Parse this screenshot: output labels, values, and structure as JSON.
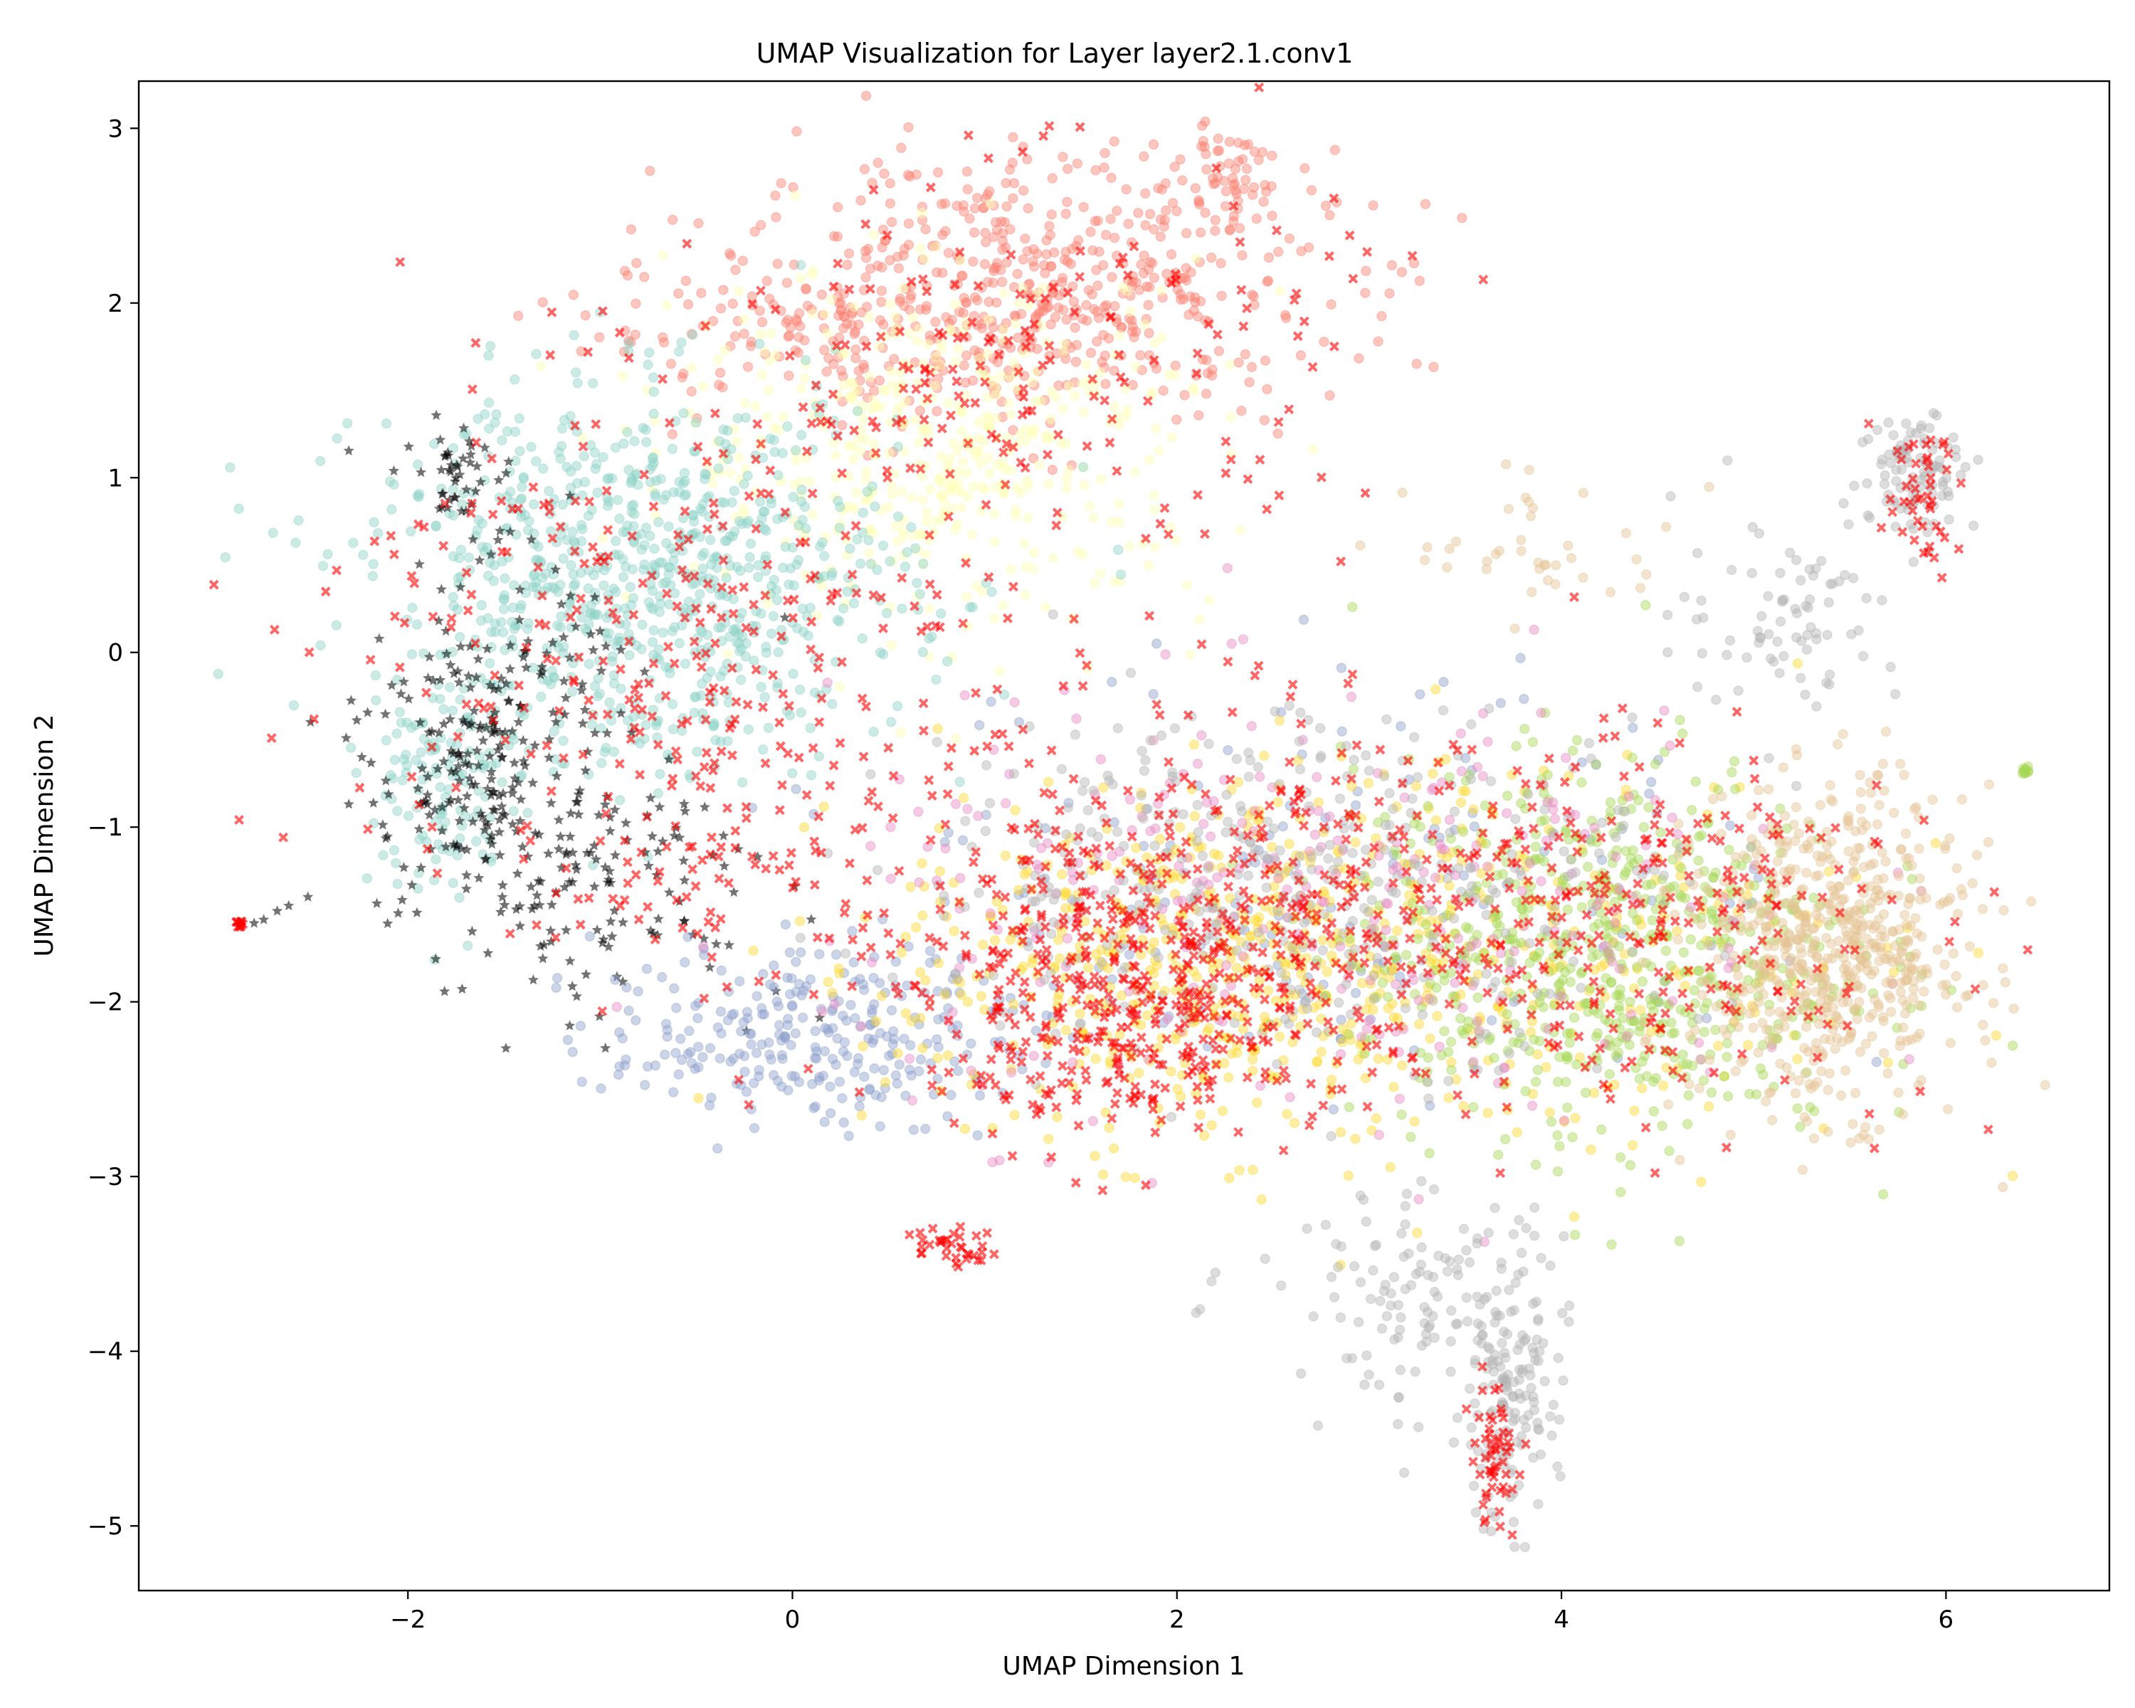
{
  "chart_data": {
    "type": "scatter",
    "title": "UMAP Visualization for Layer layer2.1.conv1",
    "xlabel": "UMAP Dimension 1",
    "ylabel": "UMAP Dimension 2",
    "xlim": [
      -3.4,
      6.85
    ],
    "ylim": [
      -5.37,
      3.27
    ],
    "x_ticks": [
      -2,
      0,
      2,
      4,
      6
    ],
    "x_tick_labels": [
      "−2",
      "0",
      "2",
      "4",
      "6"
    ],
    "y_ticks": [
      -5,
      -4,
      -3,
      -2,
      -1,
      0,
      1,
      2,
      3
    ],
    "y_tick_labels": [
      "−5",
      "−4",
      "−3",
      "−2",
      "−1",
      "0",
      "1",
      "2",
      "3"
    ],
    "grid": false,
    "legend": "none",
    "marker_alpha": 0.45,
    "series_colors": {
      "teal": "#8dd3c7",
      "light_yellow": "#ffffb3",
      "salmon": "#fb8072",
      "periwinkle": "#8da0cb",
      "gold": "#ffd92f",
      "lime": "#a6d854",
      "pink": "#e78ac3",
      "tan": "#e5c494",
      "gray": "#b3b3b3",
      "black_star": "#000000",
      "red_x": "#ff0000"
    },
    "clusters": [
      {
        "color": "salmon",
        "marker": "circle",
        "n": 520,
        "cx": 1.3,
        "cy": 2.1,
        "sx": 0.75,
        "sy": 0.4
      },
      {
        "color": "salmon",
        "marker": "circle",
        "n": 130,
        "cx": 0.2,
        "cy": 1.85,
        "sx": 0.7,
        "sy": 0.2
      },
      {
        "color": "salmon",
        "marker": "circle",
        "n": 45,
        "cx": 2.25,
        "cy": 2.7,
        "sx": 0.12,
        "sy": 0.12
      },
      {
        "color": "light_yellow",
        "marker": "circle",
        "n": 480,
        "cx": 0.8,
        "cy": 1.2,
        "sx": 0.7,
        "sy": 0.5
      },
      {
        "color": "teal",
        "marker": "circle",
        "n": 850,
        "cx": -0.8,
        "cy": 0.4,
        "sx": 0.7,
        "sy": 0.55
      },
      {
        "color": "teal",
        "marker": "circle",
        "n": 110,
        "cx": -1.8,
        "cy": -0.8,
        "sx": 0.18,
        "sy": 0.35
      },
      {
        "color": "black_star",
        "marker": "star",
        "n": 260,
        "cx": -1.6,
        "cy": -0.6,
        "sx": 0.3,
        "sy": 0.55
      },
      {
        "color": "black_star",
        "marker": "star",
        "n": 110,
        "cx": -0.9,
        "cy": -1.3,
        "sx": 0.45,
        "sy": 0.35
      },
      {
        "color": "black_star",
        "marker": "star",
        "n": 40,
        "cx": -1.75,
        "cy": 1.05,
        "sx": 0.1,
        "sy": 0.12
      },
      {
        "color": "periwinkle",
        "marker": "circle",
        "n": 280,
        "cx": 0.1,
        "cy": -2.2,
        "sx": 0.55,
        "sy": 0.25
      },
      {
        "color": "periwinkle",
        "marker": "circle",
        "n": 170,
        "cx": 2.8,
        "cy": -1.3,
        "sx": 1.2,
        "sy": 0.6
      },
      {
        "color": "gold",
        "marker": "circle",
        "n": 480,
        "cx": 2.0,
        "cy": -1.8,
        "sx": 0.75,
        "sy": 0.5
      },
      {
        "color": "gold",
        "marker": "circle",
        "n": 280,
        "cx": 3.8,
        "cy": -1.7,
        "sx": 0.9,
        "sy": 0.6
      },
      {
        "color": "lime",
        "marker": "circle",
        "n": 650,
        "cx": 4.2,
        "cy": -1.7,
        "sx": 0.65,
        "sy": 0.55
      },
      {
        "color": "pink",
        "marker": "circle",
        "n": 320,
        "cx": 2.8,
        "cy": -1.5,
        "sx": 1.3,
        "sy": 0.6
      },
      {
        "color": "tan",
        "marker": "circle",
        "n": 620,
        "cx": 5.4,
        "cy": -1.7,
        "sx": 0.35,
        "sy": 0.45
      },
      {
        "color": "gray",
        "marker": "circle",
        "n": 420,
        "cx": 2.6,
        "cy": -1.3,
        "sx": 1.0,
        "sy": 0.5
      },
      {
        "color": "gray",
        "marker": "circle",
        "n": 140,
        "cx": 3.7,
        "cy": -4.3,
        "sx": 0.14,
        "sy": 0.35
      },
      {
        "color": "gray",
        "marker": "circle",
        "n": 120,
        "cx": 3.3,
        "cy": -3.7,
        "sx": 0.35,
        "sy": 0.3
      },
      {
        "color": "gray",
        "marker": "circle",
        "n": 100,
        "cx": 5.85,
        "cy": 1.05,
        "sx": 0.15,
        "sy": 0.18
      },
      {
        "color": "gray",
        "marker": "circle",
        "n": 80,
        "cx": 5.2,
        "cy": 0.25,
        "sx": 0.3,
        "sy": 0.3
      },
      {
        "color": "lime",
        "marker": "circle",
        "n": 10,
        "cx": 6.42,
        "cy": -0.68,
        "sx": 0.02,
        "sy": 0.01
      },
      {
        "color": "tan",
        "marker": "circle",
        "n": 40,
        "cx": 3.9,
        "cy": 0.6,
        "sx": 0.35,
        "sy": 0.2
      },
      {
        "color": "red_x",
        "marker": "x",
        "n": 520,
        "cx": 2.5,
        "cy": -1.5,
        "sx": 1.3,
        "sy": 0.55
      },
      {
        "color": "red_x",
        "marker": "x",
        "n": 320,
        "cx": 1.8,
        "cy": -2.05,
        "sx": 0.55,
        "sy": 0.35
      },
      {
        "color": "red_x",
        "marker": "x",
        "n": 300,
        "cx": -0.7,
        "cy": 0.0,
        "sx": 0.85,
        "sy": 0.75
      },
      {
        "color": "red_x",
        "marker": "x",
        "n": 200,
        "cx": 1.1,
        "cy": 1.6,
        "sx": 0.9,
        "sy": 0.6
      },
      {
        "color": "red_x",
        "marker": "x",
        "n": 160,
        "cx": 4.6,
        "cy": -1.6,
        "sx": 0.7,
        "sy": 0.5
      },
      {
        "color": "red_x",
        "marker": "x",
        "n": 55,
        "cx": 3.65,
        "cy": -4.6,
        "sx": 0.06,
        "sy": 0.2
      },
      {
        "color": "red_x",
        "marker": "x",
        "n": 45,
        "cx": 5.85,
        "cy": 0.85,
        "sx": 0.12,
        "sy": 0.2
      },
      {
        "color": "red_x",
        "marker": "x",
        "n": 35,
        "cx": 0.85,
        "cy": -3.4,
        "sx": 0.1,
        "sy": 0.06
      },
      {
        "color": "red_x",
        "marker": "x",
        "n": 40,
        "cx": -0.6,
        "cy": -1.3,
        "sx": 0.4,
        "sy": 0.3
      },
      {
        "color": "red_x",
        "marker": "x",
        "n": 12,
        "cx": -2.88,
        "cy": -1.55,
        "sx": 0.01,
        "sy": 0.01
      }
    ],
    "outliers": [
      {
        "color": "black_star",
        "marker": "star",
        "x": -2.8,
        "y": -1.55
      },
      {
        "color": "black_star",
        "marker": "star",
        "x": -2.75,
        "y": -1.53
      },
      {
        "color": "black_star",
        "marker": "star",
        "x": -2.68,
        "y": -1.48
      },
      {
        "color": "black_star",
        "marker": "star",
        "x": -2.62,
        "y": -1.45
      },
      {
        "color": "black_star",
        "marker": "star",
        "x": -2.52,
        "y": -1.4
      },
      {
        "color": "gray",
        "marker": "circle",
        "x": 2.1,
        "y": -3.78
      },
      {
        "color": "gray",
        "marker": "circle",
        "x": 2.12,
        "y": -3.76
      },
      {
        "color": "gray",
        "marker": "circle",
        "x": 2.18,
        "y": -3.6
      },
      {
        "color": "gray",
        "marker": "circle",
        "x": 2.2,
        "y": -3.55
      }
    ]
  }
}
